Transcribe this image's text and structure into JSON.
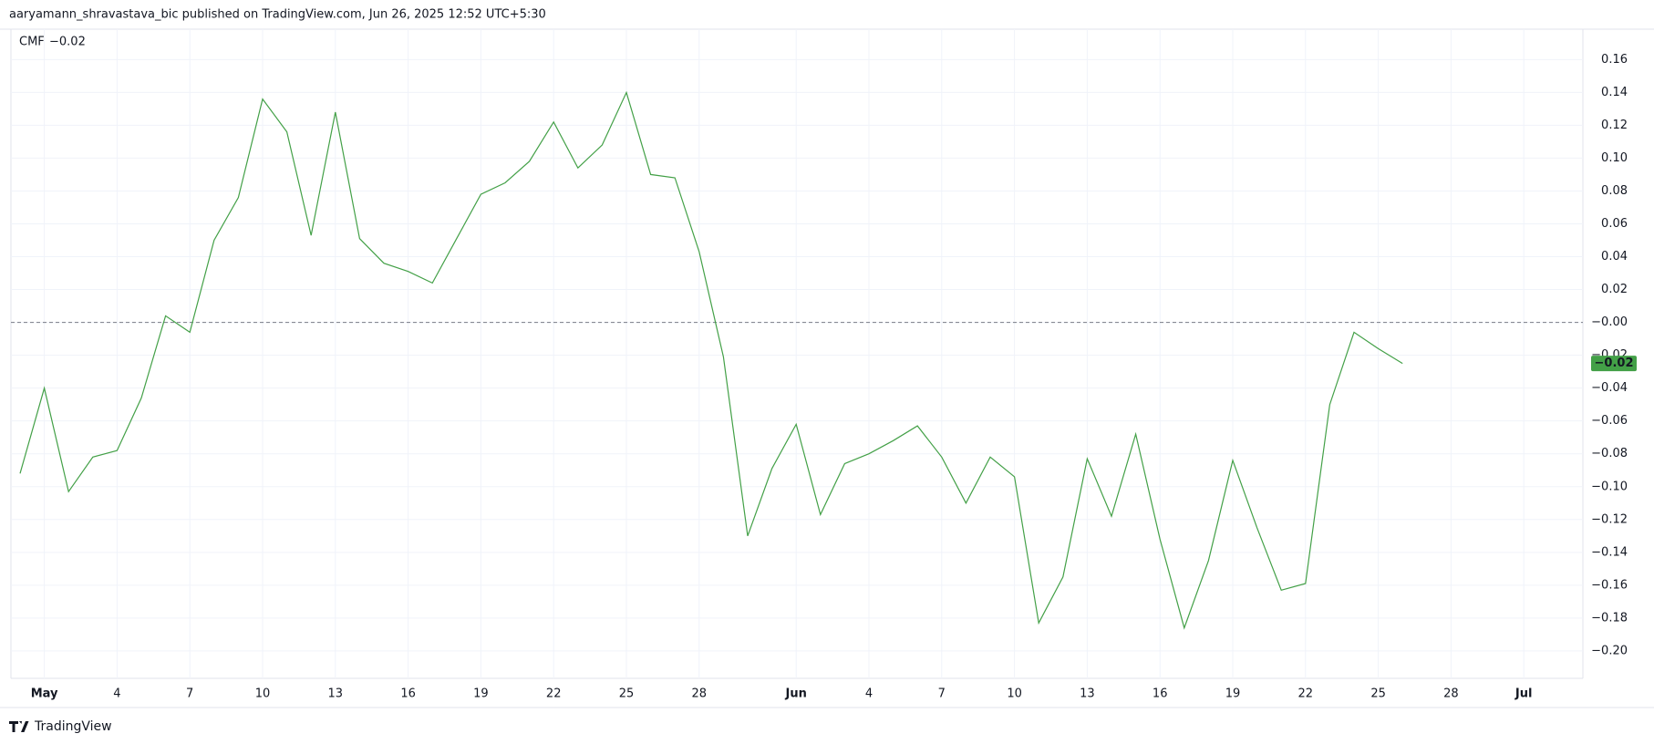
{
  "header": "aaryamann_shravastava_bic published on TradingView.com, Jun 26, 2025 12:52 UTC+5:30",
  "footer": "TradingView",
  "chart_data": {
    "type": "line",
    "categories": [
      null,
      "May",
      null,
      null,
      "4",
      null,
      null,
      "7",
      null,
      null,
      "10",
      null,
      null,
      "13",
      null,
      null,
      "16",
      null,
      null,
      "19",
      null,
      null,
      "22",
      null,
      null,
      "25",
      null,
      null,
      "28",
      null,
      null,
      null,
      "Jun",
      null,
      null,
      "4",
      null,
      null,
      "7",
      null,
      null,
      "10",
      null,
      null,
      "13",
      null,
      null,
      "16",
      null,
      null,
      "19",
      null,
      null,
      "22",
      null,
      null,
      "25",
      null,
      null,
      "28",
      null,
      null,
      "Jul"
    ],
    "series": [
      {
        "name": "CMF",
        "color": "#43a047",
        "last_value_label": "−0.02",
        "values": [
          -0.092,
          -0.04,
          -0.103,
          -0.082,
          -0.078,
          -0.046,
          0.004,
          -0.006,
          0.05,
          0.076,
          0.136,
          0.116,
          0.053,
          0.128,
          0.051,
          0.036,
          0.031,
          0.024,
          0.051,
          0.078,
          0.085,
          0.098,
          0.122,
          0.094,
          0.108,
          0.14,
          0.09,
          0.088,
          0.043,
          -0.021,
          -0.13,
          -0.089,
          -0.062,
          -0.117,
          -0.086,
          -0.08,
          -0.072,
          -0.063,
          -0.082,
          -0.11,
          -0.082,
          -0.094,
          -0.183,
          -0.155,
          -0.083,
          -0.118,
          -0.068,
          -0.132,
          -0.186,
          -0.145,
          -0.084,
          -0.125,
          -0.163,
          -0.159,
          -0.05,
          -0.006,
          -0.016,
          -0.025,
          null,
          null,
          null,
          null,
          null
        ]
      }
    ],
    "ylim": [
      -0.2167,
      0.1785
    ],
    "yticks": [
      0.16,
      0.14,
      0.12,
      {
        "value": 0.1,
        "label": "0.10"
      },
      0.08,
      0.06,
      0.04,
      0.02,
      {
        "value": 0,
        "label": "−0.00"
      },
      {
        "value": -0.02,
        "label": "−0.02"
      },
      {
        "value": -0.04,
        "label": "−0.04"
      },
      {
        "value": -0.06,
        "label": "−0.06"
      },
      {
        "value": -0.08,
        "label": "−0.08"
      },
      {
        "value": -0.1,
        "label": "−0.10"
      },
      {
        "value": -0.12,
        "label": "−0.12"
      },
      {
        "value": -0.14,
        "label": "−0.14"
      },
      {
        "value": -0.16,
        "label": "−0.16"
      },
      {
        "value": -0.18,
        "label": "−0.18"
      },
      {
        "value": -0.2,
        "label": "−0.20"
      }
    ],
    "grid": true,
    "zero_line": true
  }
}
